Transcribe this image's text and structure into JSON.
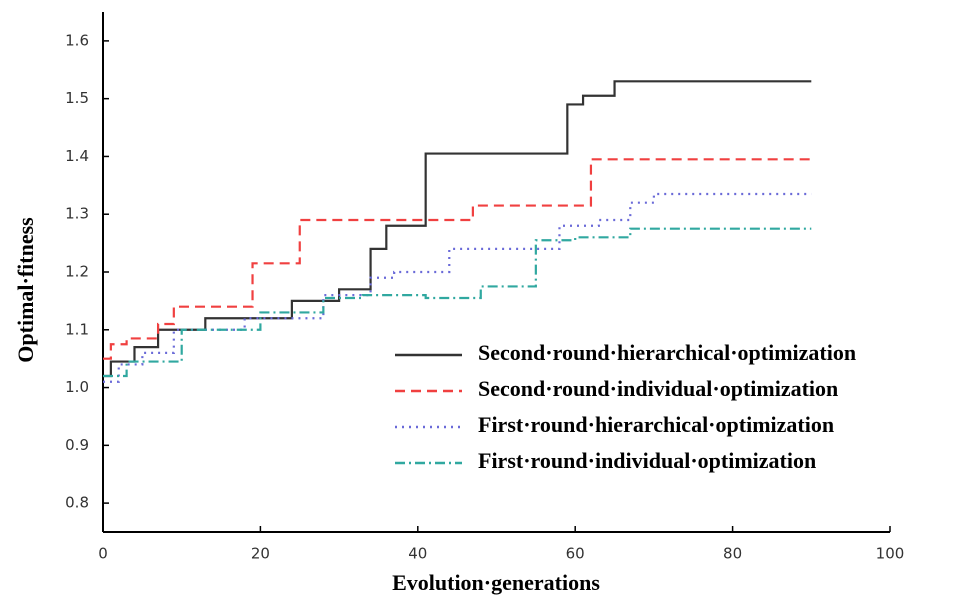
{
  "chart_data": {
    "type": "line",
    "step": true,
    "x_label": "Evolution·generations",
    "y_label": "Optimal·fitness",
    "xlim": [
      0,
      100
    ],
    "xticks": [
      0,
      20,
      40,
      60,
      80,
      100
    ],
    "ylim": [
      0.75,
      1.65
    ],
    "yticks": [
      0.8,
      0.9,
      {
        "value": 1,
        "label": "1.0"
      },
      1.1,
      1.2,
      1.3,
      1.4,
      1.5,
      1.6
    ],
    "legend": "lower-right",
    "series": [
      {
        "name": "Second·round·hierarchical·optimization",
        "color": "#333333",
        "dash": "solid",
        "x": [
          0,
          1,
          4,
          7,
          13,
          24,
          30,
          34,
          36,
          41,
          59,
          61,
          65,
          90
        ],
        "values": [
          1.02,
          1.045,
          1.07,
          1.1,
          1.12,
          1.15,
          1.17,
          1.24,
          1.28,
          1.405,
          1.49,
          1.505,
          1.53,
          1.53
        ]
      },
      {
        "name": "Second·round·individual·optimization",
        "color": "#f04040",
        "dash": "dashed",
        "x": [
          0,
          1,
          3,
          7,
          9,
          19,
          25,
          47,
          62,
          90
        ],
        "values": [
          1.05,
          1.075,
          1.085,
          1.11,
          1.14,
          1.215,
          1.29,
          1.315,
          1.395,
          1.395
        ]
      },
      {
        "name": "First·round·hierarchical·optimization",
        "color": "#6a6ad8",
        "dash": "dotted",
        "x": [
          0,
          2,
          5,
          9,
          18,
          28,
          34,
          37,
          44,
          58,
          63,
          67,
          70,
          90
        ],
        "values": [
          1.01,
          1.04,
          1.06,
          1.1,
          1.12,
          1.16,
          1.19,
          1.2,
          1.24,
          1.28,
          1.29,
          1.32,
          1.335,
          1.335
        ]
      },
      {
        "name": "First·round·individual·optimization",
        "color": "#30a8a0",
        "dash": "dashdot",
        "x": [
          0,
          3,
          10,
          20,
          28,
          33,
          41,
          48,
          55,
          60,
          67,
          90
        ],
        "values": [
          1.02,
          1.045,
          1.1,
          1.13,
          1.155,
          1.16,
          1.155,
          1.175,
          1.255,
          1.26,
          1.275,
          1.275
        ]
      }
    ]
  }
}
